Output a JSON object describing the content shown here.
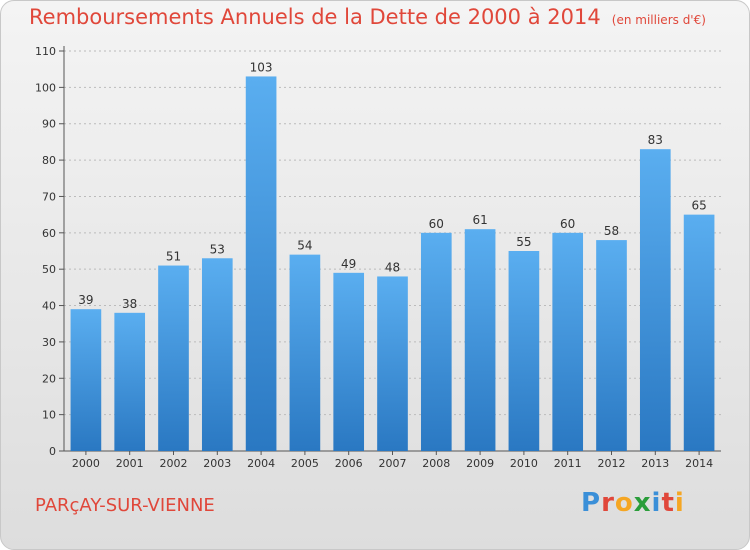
{
  "header": {
    "title": "Remboursements Annuels de la Dette de 2000 à 2014",
    "subtitle": "(en milliers d'€)"
  },
  "footer": {
    "town": "PARçAY-SUR-VIENNE",
    "brand": "Proxiti",
    "brand_letters": [
      {
        "ch": "P",
        "color": "#3a8fd8"
      },
      {
        "ch": "r",
        "color": "#e0473a"
      },
      {
        "ch": "o",
        "color": "#f5a623"
      },
      {
        "ch": "x",
        "color": "#2a9d3a"
      },
      {
        "ch": "i",
        "color": "#3a8fd8"
      },
      {
        "ch": "t",
        "color": "#e0473a"
      },
      {
        "ch": "i",
        "color": "#f5a623"
      }
    ]
  },
  "colors": {
    "accent": "#e0473a",
    "bar_top": "#5aaef0",
    "bar_bottom": "#2a78c2",
    "grid": "#bbbbbb",
    "axis": "#555555"
  },
  "chart_data": {
    "type": "bar",
    "categories": [
      "2000",
      "2001",
      "2002",
      "2003",
      "2004",
      "2005",
      "2006",
      "2007",
      "2008",
      "2009",
      "2010",
      "2011",
      "2012",
      "2013",
      "2014"
    ],
    "values": [
      39,
      38,
      51,
      53,
      103,
      54,
      49,
      48,
      60,
      61,
      55,
      60,
      58,
      83,
      65
    ],
    "title": "Remboursements Annuels de la Dette de 2000 à 2014",
    "xlabel": "",
    "ylabel": "",
    "ylim": [
      0,
      110
    ],
    "yticks": [
      0,
      10,
      20,
      30,
      40,
      50,
      60,
      70,
      80,
      90,
      100,
      110
    ],
    "grid": true,
    "data_labels": true
  }
}
